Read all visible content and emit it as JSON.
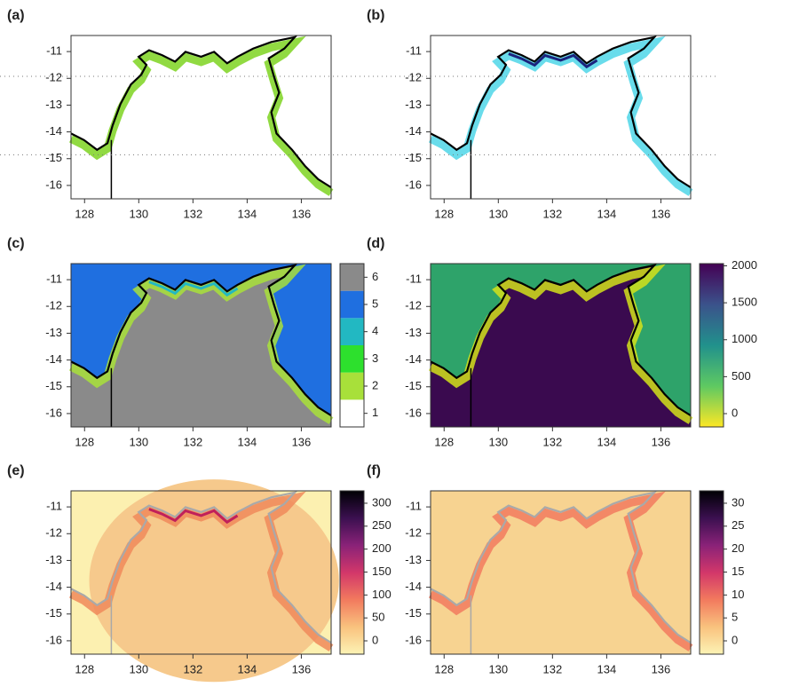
{
  "map": {
    "xlim": [
      127.5,
      137.1
    ],
    "ylim": [
      -16.5,
      -10.4
    ],
    "xticks": [
      128,
      130,
      132,
      134,
      136
    ],
    "yticks": [
      -11,
      -12,
      -13,
      -14,
      -15,
      -16
    ]
  },
  "panels": [
    {
      "label": "(a)"
    },
    {
      "label": "(b)"
    },
    {
      "label": "(c)",
      "colorbar": {
        "lim": [
          0.5,
          6.5
        ],
        "ticks": [
          1,
          2,
          3,
          4,
          5,
          6
        ],
        "discrete": true,
        "colors": [
          "#ffffff",
          "#a8e03a",
          "#2de02d",
          "#22b8c2",
          "#1f6fe0",
          "#8a8a8a"
        ]
      }
    },
    {
      "label": "(d)",
      "colorbar": {
        "lim": [
          -180,
          2030
        ],
        "ticks": [
          0,
          500,
          1000,
          1500,
          2000
        ],
        "discrete": false,
        "colors": [
          "#fde725",
          "#5ec962",
          "#21918c",
          "#3b528b",
          "#440154"
        ]
      }
    },
    {
      "label": "(e)",
      "colorbar": {
        "lim": [
          -29,
          327
        ],
        "ticks": [
          0,
          50,
          100,
          150,
          200,
          250,
          300
        ],
        "discrete": false,
        "colors": [
          "#fcf3b5",
          "#f9c27e",
          "#f27a5e",
          "#d2376a",
          "#8a2278",
          "#3b1050",
          "#000004"
        ]
      }
    },
    {
      "label": "(f)",
      "colorbar": {
        "lim": [
          -2.9,
          32.7
        ],
        "ticks": [
          0,
          5,
          10,
          15,
          20,
          25,
          30
        ],
        "discrete": false,
        "colors": [
          "#fcf3b5",
          "#f9c27e",
          "#f27a5e",
          "#d2376a",
          "#8a2278",
          "#3b1050",
          "#000004"
        ]
      }
    }
  ]
}
